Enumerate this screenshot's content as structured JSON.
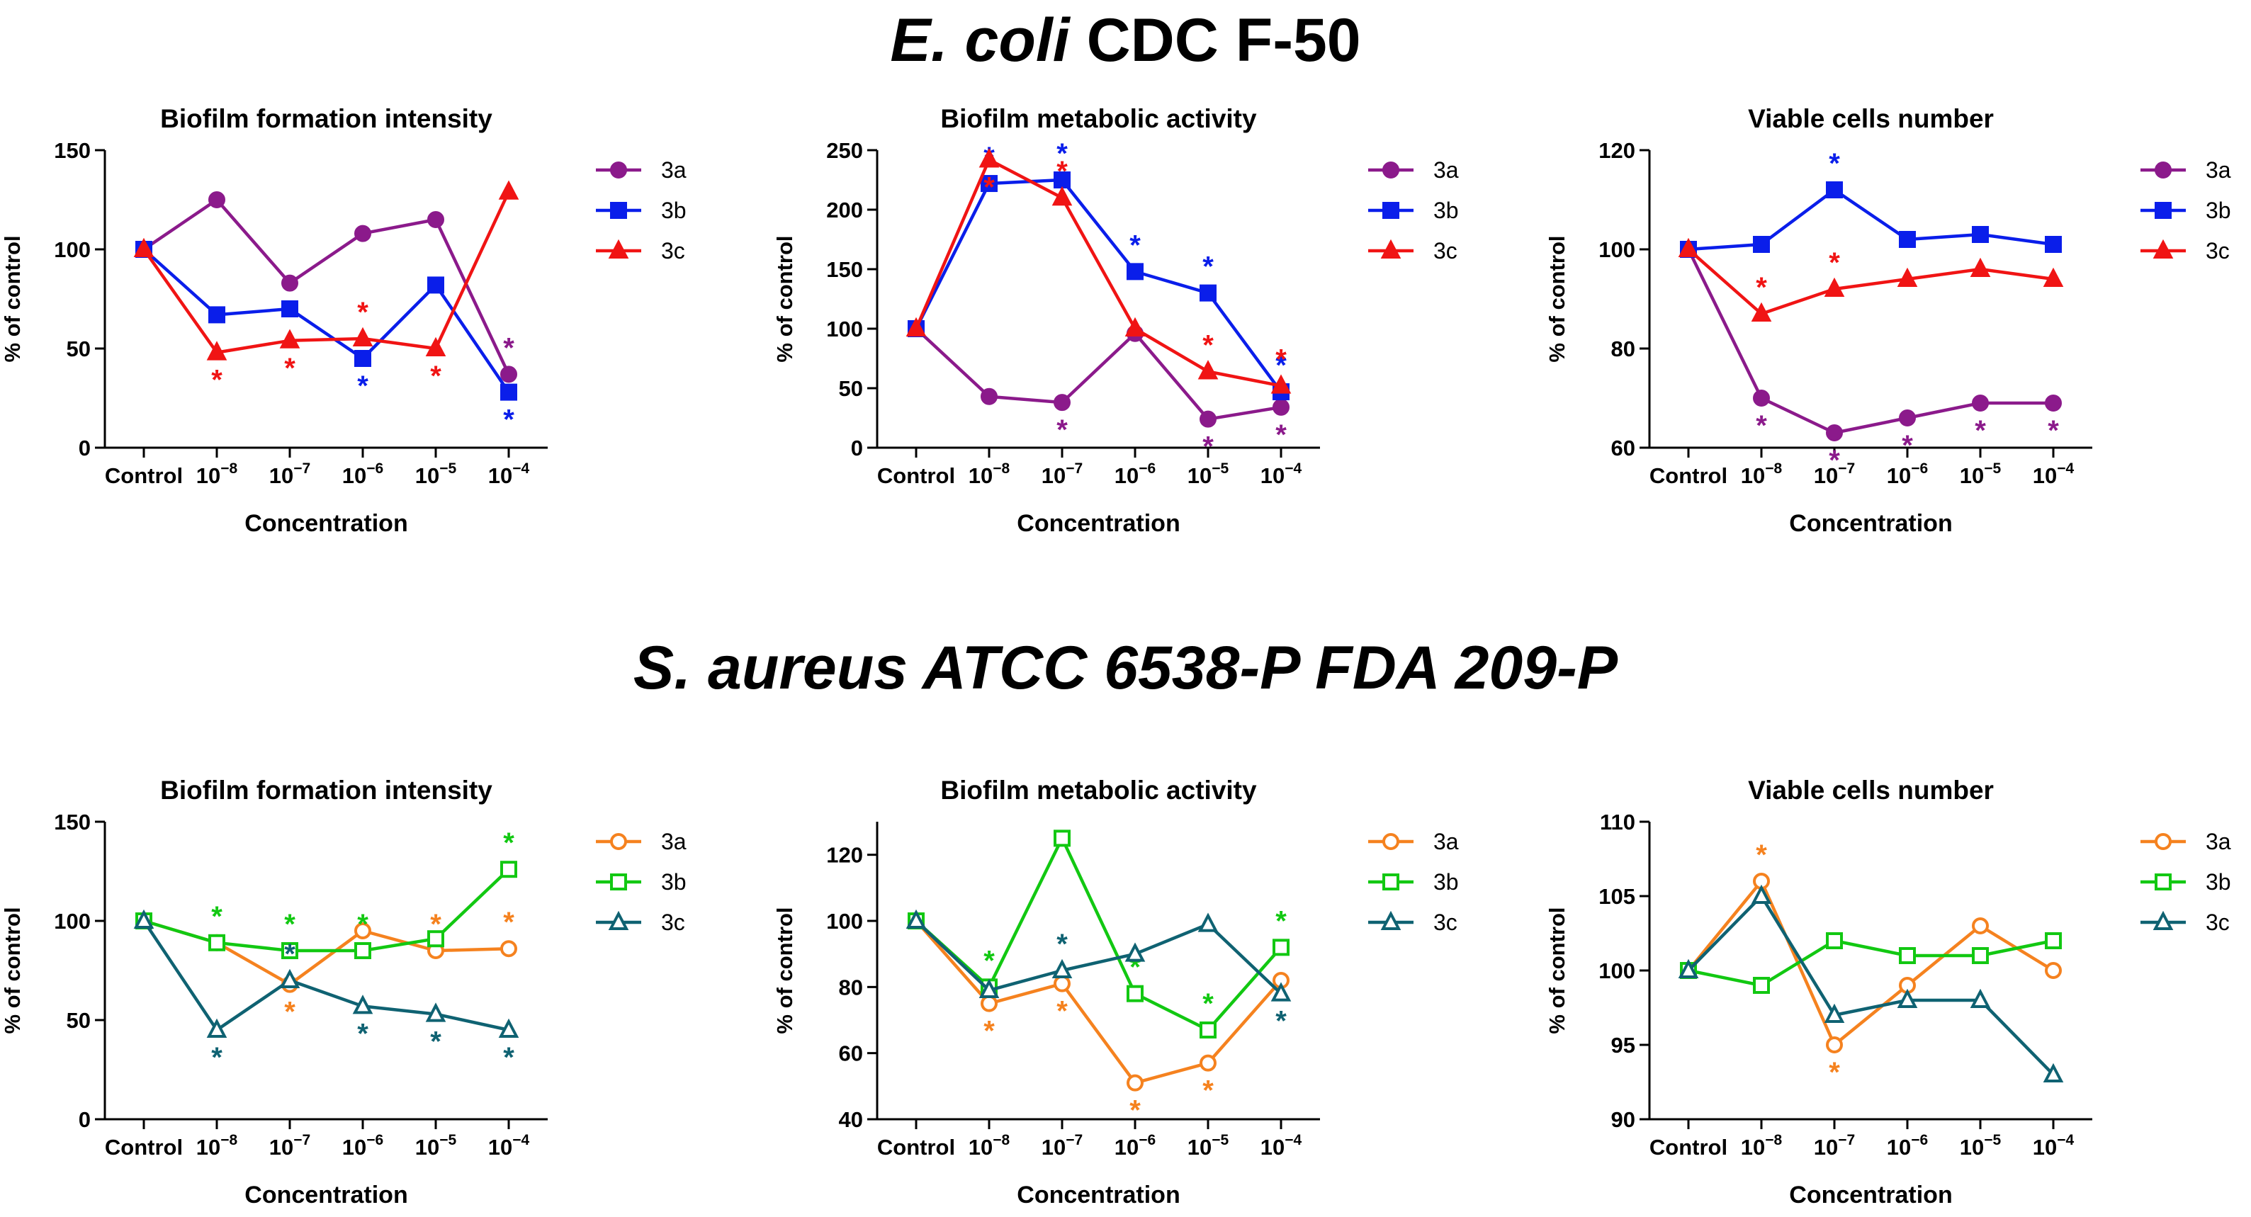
{
  "sections": {
    "ecoli": {
      "organism": "E. coli",
      "strain": "CDC F-50"
    },
    "saureus": {
      "title": "S. aureus ATCC 6538-P FDA 209-P"
    }
  },
  "chart_data": [
    {
      "type": "line",
      "section": "E. coli CDC F-50",
      "title": "Biofilm formation intensity",
      "xlabel": "Concentration",
      "ylabel": "% of control",
      "categories": [
        "Control",
        "10-8",
        "10-7",
        "10-6",
        "10-5",
        "10-4"
      ],
      "ylim": [
        0,
        150
      ],
      "yticks": [
        0,
        50,
        100,
        150
      ],
      "series": [
        {
          "name": "3a",
          "color": "#8B1A8B",
          "marker": "circle",
          "filled": true,
          "values": [
            100,
            125,
            83,
            108,
            115,
            37
          ],
          "significant": [
            false,
            false,
            false,
            false,
            false,
            true
          ]
        },
        {
          "name": "3b",
          "color": "#0A1EEA",
          "marker": "square",
          "filled": true,
          "values": [
            100,
            67,
            70,
            45,
            82,
            28
          ],
          "significant": [
            false,
            false,
            false,
            true,
            false,
            true
          ]
        },
        {
          "name": "3c",
          "color": "#F01414",
          "marker": "triangle",
          "filled": true,
          "values": [
            100,
            48,
            54,
            55,
            50,
            129
          ],
          "significant": [
            false,
            true,
            true,
            true,
            true,
            false
          ]
        }
      ]
    },
    {
      "type": "line",
      "section": "E. coli CDC F-50",
      "title": "Biofilm metabolic activity",
      "xlabel": "Concentration",
      "ylabel": "% of control",
      "categories": [
        "Control",
        "10-8",
        "10-7",
        "10-6",
        "10-5",
        "10-4"
      ],
      "ylim": [
        0,
        250
      ],
      "yticks": [
        0,
        50,
        100,
        150,
        200,
        250
      ],
      "series": [
        {
          "name": "3a",
          "color": "#8B1A8B",
          "marker": "circle",
          "filled": true,
          "values": [
            100,
            43,
            38,
            96,
            24,
            34
          ],
          "significant": [
            false,
            false,
            true,
            false,
            true,
            true
          ]
        },
        {
          "name": "3b",
          "color": "#0A1EEA",
          "marker": "square",
          "filled": true,
          "values": [
            100,
            222,
            225,
            148,
            130,
            47
          ],
          "significant": [
            false,
            true,
            true,
            true,
            true,
            true
          ]
        },
        {
          "name": "3c",
          "color": "#F01414",
          "marker": "triangle",
          "filled": true,
          "values": [
            100,
            242,
            210,
            100,
            64,
            52
          ],
          "significant": [
            false,
            true,
            true,
            false,
            true,
            true
          ]
        }
      ]
    },
    {
      "type": "line",
      "section": "E. coli CDC F-50",
      "title": "Viable cells number",
      "xlabel": "Concentration",
      "ylabel": "% of control",
      "categories": [
        "Control",
        "10-8",
        "10-7",
        "10-6",
        "10-5",
        "10-4"
      ],
      "ylim": [
        60,
        120
      ],
      "yticks": [
        60,
        80,
        100,
        120
      ],
      "series": [
        {
          "name": "3a",
          "color": "#8B1A8B",
          "marker": "circle",
          "filled": true,
          "values": [
            100,
            70,
            63,
            66,
            69,
            69
          ],
          "significant": [
            false,
            true,
            true,
            true,
            true,
            true
          ]
        },
        {
          "name": "3b",
          "color": "#0A1EEA",
          "marker": "square",
          "filled": true,
          "values": [
            100,
            101,
            112,
            102,
            103,
            101
          ],
          "significant": [
            false,
            false,
            true,
            false,
            false,
            false
          ]
        },
        {
          "name": "3c",
          "color": "#F01414",
          "marker": "triangle",
          "filled": true,
          "values": [
            100,
            87,
            92,
            94,
            96,
            94
          ],
          "significant": [
            false,
            true,
            true,
            false,
            false,
            false
          ]
        }
      ]
    },
    {
      "type": "line",
      "section": "S. aureus ATCC 6538-P FDA 209-P",
      "title": "Biofilm formation intensity",
      "xlabel": "Concentration",
      "ylabel": "% of control",
      "categories": [
        "Control",
        "10-8",
        "10-7",
        "10-6",
        "10-5",
        "10-4"
      ],
      "ylim": [
        0,
        150
      ],
      "yticks": [
        0,
        50,
        100,
        150
      ],
      "series": [
        {
          "name": "3a",
          "color": "#F5821F",
          "marker": "circle",
          "filled": false,
          "values": [
            100,
            89,
            68,
            95,
            85,
            86
          ],
          "significant": [
            false,
            false,
            true,
            false,
            true,
            true
          ]
        },
        {
          "name": "3b",
          "color": "#12C812",
          "marker": "square",
          "filled": false,
          "values": [
            100,
            89,
            85,
            85,
            91,
            126
          ],
          "significant": [
            false,
            true,
            true,
            true,
            false,
            true
          ]
        },
        {
          "name": "3c",
          "color": "#0F6272",
          "marker": "triangle",
          "filled": false,
          "values": [
            100,
            45,
            70,
            57,
            53,
            45
          ],
          "significant": [
            false,
            true,
            true,
            true,
            true,
            true
          ]
        }
      ]
    },
    {
      "type": "line",
      "section": "S. aureus ATCC 6538-P FDA 209-P",
      "title": "Biofilm metabolic activity",
      "xlabel": "Concentration",
      "ylabel": "% of control",
      "categories": [
        "Control",
        "10-8",
        "10-7",
        "10-6",
        "10-5",
        "10-4"
      ],
      "ylim": [
        40,
        130
      ],
      "yticks": [
        40,
        60,
        80,
        100,
        120
      ],
      "series": [
        {
          "name": "3a",
          "color": "#F5821F",
          "marker": "circle",
          "filled": false,
          "values": [
            100,
            75,
            81,
            51,
            57,
            82
          ],
          "significant": [
            false,
            true,
            true,
            true,
            true,
            true
          ]
        },
        {
          "name": "3b",
          "color": "#12C812",
          "marker": "square",
          "filled": false,
          "values": [
            100,
            80,
            125,
            78,
            67,
            92
          ],
          "significant": [
            false,
            true,
            false,
            true,
            true,
            true
          ]
        },
        {
          "name": "3c",
          "color": "#0F6272",
          "marker": "triangle",
          "filled": false,
          "values": [
            100,
            79,
            85,
            90,
            99,
            78
          ],
          "significant": [
            false,
            false,
            true,
            false,
            false,
            true
          ]
        }
      ]
    },
    {
      "type": "line",
      "section": "S. aureus ATCC 6538-P FDA 209-P",
      "title": "Viable cells number",
      "xlabel": "Concentration",
      "ylabel": "% of control",
      "categories": [
        "Control",
        "10-8",
        "10-7",
        "10-6",
        "10-5",
        "10-4"
      ],
      "ylim": [
        90,
        110
      ],
      "yticks": [
        90,
        95,
        100,
        105,
        110
      ],
      "series": [
        {
          "name": "3a",
          "color": "#F5821F",
          "marker": "circle",
          "filled": false,
          "values": [
            100,
            106,
            95,
            99,
            103,
            100
          ],
          "significant": [
            false,
            true,
            true,
            false,
            false,
            false
          ]
        },
        {
          "name": "3b",
          "color": "#12C812",
          "marker": "square",
          "filled": false,
          "values": [
            100,
            99,
            102,
            101,
            101,
            102
          ],
          "significant": [
            false,
            false,
            false,
            false,
            false,
            false
          ]
        },
        {
          "name": "3c",
          "color": "#0F6272",
          "marker": "triangle",
          "filled": false,
          "values": [
            100,
            105,
            97,
            98,
            98,
            93
          ],
          "significant": [
            false,
            false,
            false,
            false,
            false,
            false
          ]
        }
      ]
    }
  ]
}
